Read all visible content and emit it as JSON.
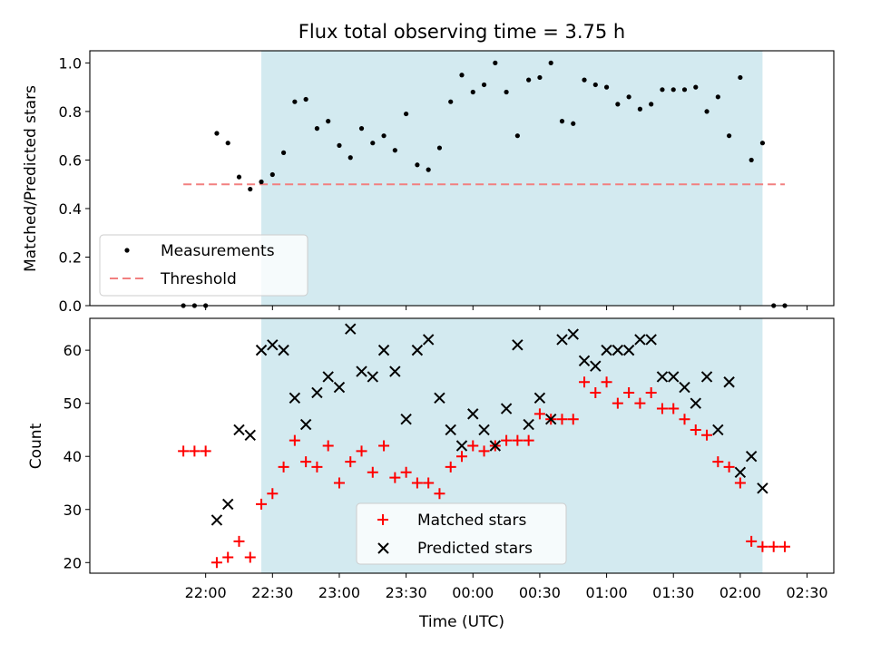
{
  "chart_data": [
    {
      "type": "scatter",
      "title": "Flux total observing time = 3.75 h",
      "ylabel": "Matched/Predicted stars",
      "xlim_minutes": [
        1268,
        1602
      ],
      "ylim": [
        0,
        1.05
      ],
      "yticks": [
        "0.0",
        "0.2",
        "0.4",
        "0.6",
        "0.8",
        "1.0"
      ],
      "shaded_region": {
        "start": "22:25",
        "end": "02:10",
        "color": "#d3eaf0"
      },
      "legend": {
        "position": "lower left",
        "entries": [
          "Measurements",
          "Threshold"
        ]
      },
      "threshold": {
        "value": 0.5,
        "x_start": "21:50",
        "x_end": "02:20",
        "color": "#f28080"
      },
      "series": [
        {
          "name": "Measurements",
          "color": "#000000",
          "marker": "dot",
          "x": [
            "21:50",
            "21:55",
            "22:00",
            "22:05",
            "22:10",
            "22:15",
            "22:20",
            "22:25",
            "22:30",
            "22:35",
            "22:40",
            "22:45",
            "22:50",
            "22:55",
            "23:00",
            "23:05",
            "23:10",
            "23:15",
            "23:20",
            "23:25",
            "23:30",
            "23:35",
            "23:40",
            "23:45",
            "23:50",
            "23:55",
            "00:00",
            "00:05",
            "00:10",
            "00:15",
            "00:20",
            "00:25",
            "00:30",
            "00:35",
            "00:40",
            "00:45",
            "00:50",
            "00:55",
            "01:00",
            "01:05",
            "01:10",
            "01:15",
            "01:20",
            "01:25",
            "01:30",
            "01:35",
            "01:40",
            "01:45",
            "01:50",
            "01:55",
            "02:00",
            "02:05",
            "02:10",
            "02:15",
            "02:20"
          ],
          "y": [
            0.0,
            0.0,
            0.0,
            0.71,
            0.67,
            0.53,
            0.48,
            0.51,
            0.54,
            0.63,
            0.84,
            0.85,
            0.73,
            0.76,
            0.66,
            0.61,
            0.73,
            0.67,
            0.7,
            0.64,
            0.79,
            0.58,
            0.56,
            0.65,
            0.84,
            0.95,
            0.88,
            0.91,
            1.0,
            0.88,
            0.7,
            0.93,
            0.94,
            1.0,
            0.76,
            0.75,
            0.93,
            0.91,
            0.9,
            0.83,
            0.86,
            0.81,
            0.83,
            0.89,
            0.89,
            0.89,
            0.9,
            0.8,
            0.86,
            0.7,
            0.94,
            0.6,
            0.67,
            0.0,
            0.0
          ]
        }
      ]
    },
    {
      "type": "scatter",
      "xlabel": "Time (UTC)",
      "ylabel": "Count",
      "xlim_minutes": [
        1268,
        1602
      ],
      "ylim": [
        18,
        66
      ],
      "yticks": [
        "20",
        "30",
        "40",
        "50",
        "60"
      ],
      "xticks": [
        "22:00",
        "22:30",
        "23:00",
        "23:30",
        "00:00",
        "00:30",
        "01:00",
        "01:30",
        "02:00",
        "02:30"
      ],
      "shaded_region": {
        "start": "22:25",
        "end": "02:10",
        "color": "#d3eaf0"
      },
      "legend": {
        "position": "lower center",
        "entries": [
          "Matched stars",
          "Predicted stars"
        ]
      },
      "series": [
        {
          "name": "Matched stars",
          "color": "#ff0000",
          "marker": "plus",
          "x": [
            "21:50",
            "21:55",
            "22:00",
            "22:05",
            "22:10",
            "22:15",
            "22:20",
            "22:25",
            "22:30",
            "22:35",
            "22:40",
            "22:45",
            "22:50",
            "22:55",
            "23:00",
            "23:05",
            "23:10",
            "23:15",
            "23:20",
            "23:25",
            "23:30",
            "23:35",
            "23:40",
            "23:45",
            "23:50",
            "23:55",
            "00:00",
            "00:05",
            "00:10",
            "00:15",
            "00:20",
            "00:25",
            "00:30",
            "00:35",
            "00:40",
            "00:45",
            "00:50",
            "00:55",
            "01:00",
            "01:05",
            "01:10",
            "01:15",
            "01:20",
            "01:25",
            "01:30",
            "01:35",
            "01:40",
            "01:45",
            "01:50",
            "01:55",
            "02:00",
            "02:05",
            "02:10",
            "02:15",
            "02:20"
          ],
          "y": [
            41,
            41,
            41,
            20,
            21,
            24,
            21,
            31,
            33,
            38,
            43,
            39,
            38,
            42,
            35,
            39,
            41,
            37,
            42,
            36,
            37,
            35,
            35,
            33,
            38,
            40,
            42,
            41,
            42,
            43,
            43,
            43,
            48,
            47,
            47,
            47,
            54,
            52,
            54,
            50,
            52,
            50,
            52,
            49,
            49,
            47,
            45,
            44,
            39,
            38,
            35,
            24,
            23,
            23,
            23
          ]
        },
        {
          "name": "Predicted stars",
          "color": "#000000",
          "marker": "x",
          "x": [
            "22:05",
            "22:10",
            "22:15",
            "22:20",
            "22:25",
            "22:30",
            "22:35",
            "22:40",
            "22:45",
            "22:50",
            "22:55",
            "23:00",
            "23:05",
            "23:10",
            "23:15",
            "23:20",
            "23:25",
            "23:30",
            "23:35",
            "23:40",
            "23:45",
            "23:50",
            "23:55",
            "00:00",
            "00:05",
            "00:10",
            "00:15",
            "00:20",
            "00:25",
            "00:30",
            "00:35",
            "00:40",
            "00:45",
            "00:50",
            "00:55",
            "01:00",
            "01:05",
            "01:10",
            "01:15",
            "01:20",
            "01:25",
            "01:30",
            "01:35",
            "01:40",
            "01:45",
            "01:50",
            "01:55",
            "02:00",
            "02:05",
            "02:10"
          ],
          "y": [
            28,
            31,
            45,
            44,
            60,
            61,
            60,
            51,
            46,
            52,
            55,
            53,
            64,
            56,
            55,
            60,
            56,
            47,
            60,
            62,
            51,
            45,
            42,
            48,
            45,
            42,
            49,
            61,
            46,
            51,
            47,
            62,
            63,
            58,
            57,
            60,
            60,
            60,
            62,
            62,
            55,
            55,
            53,
            50,
            55,
            45,
            54,
            37,
            40,
            34
          ]
        }
      ]
    }
  ]
}
